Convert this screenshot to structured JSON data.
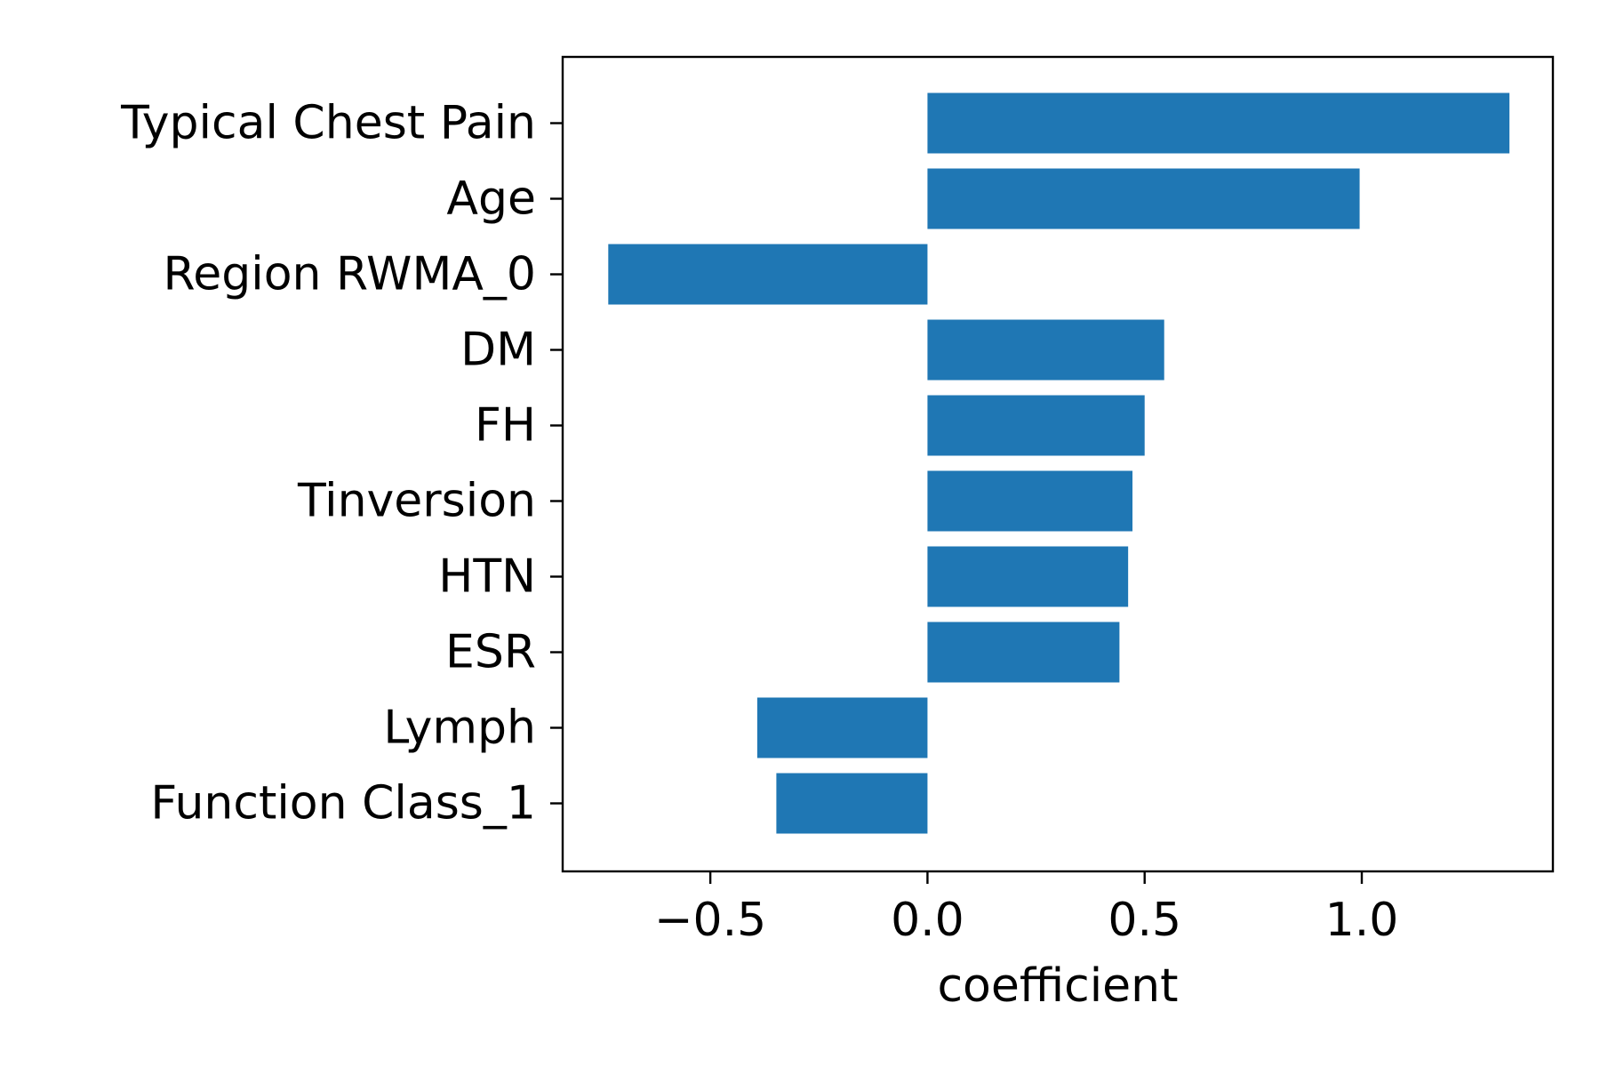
{
  "chart_data": {
    "type": "bar",
    "orientation": "horizontal",
    "title": "",
    "xlabel": "coefficient",
    "ylabel": "",
    "xlim": [
      -0.84,
      1.44
    ],
    "xticks": [
      -0.5,
      0.0,
      0.5,
      1.0
    ],
    "xtick_labels": [
      "−0.5",
      "0.0",
      "0.5",
      "1.0"
    ],
    "categories": [
      "Typical Chest Pain",
      "Age",
      "Region RWMA_0",
      "DM",
      "FH",
      "Tinversion",
      "HTN",
      "ESR",
      "Lymph",
      "Function Class_1"
    ],
    "values": [
      1.34,
      0.995,
      -0.735,
      0.545,
      0.5,
      0.472,
      0.462,
      0.442,
      -0.392,
      -0.348
    ],
    "bar_color": "#1f77b4",
    "grid": false,
    "legend": "none"
  }
}
